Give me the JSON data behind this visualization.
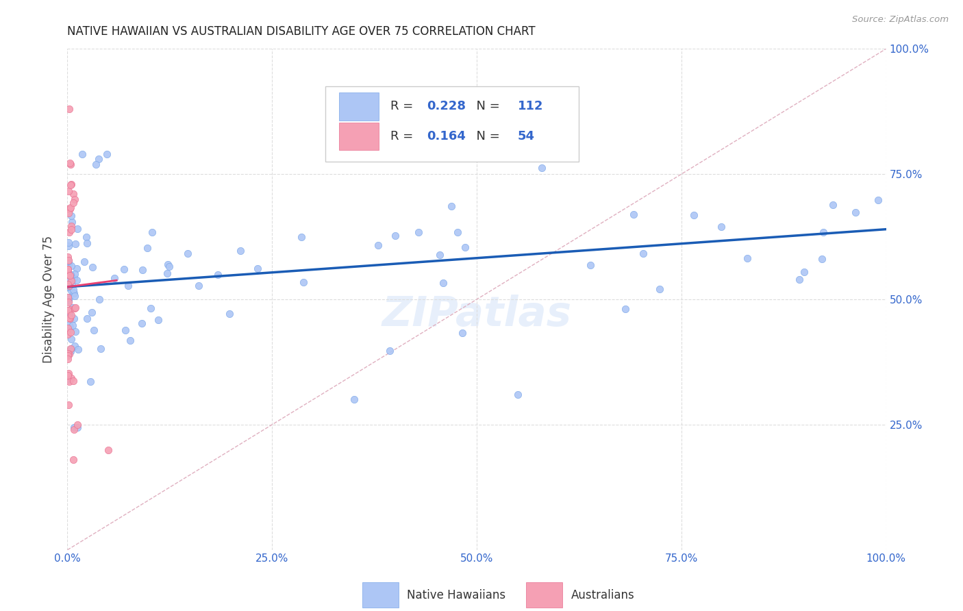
{
  "title": "NATIVE HAWAIIAN VS AUSTRALIAN DISABILITY AGE OVER 75 CORRELATION CHART",
  "source": "Source: ZipAtlas.com",
  "ylabel": "Disability Age Over 75",
  "xlim": [
    0,
    1.0
  ],
  "ylim": [
    0,
    1.0
  ],
  "xticks": [
    0.0,
    0.25,
    0.5,
    0.75,
    1.0
  ],
  "xticklabels": [
    "0.0%",
    "25.0%",
    "50.0%",
    "75.0%",
    "100.0%"
  ],
  "yticks": [
    0.25,
    0.5,
    0.75,
    1.0
  ],
  "yticklabels": [
    "25.0%",
    "50.0%",
    "75.0%",
    "100.0%"
  ],
  "title_color": "#222222",
  "title_fontsize": 12,
  "axis_tick_color": "#3366cc",
  "blue_line": [
    0.0,
    0.525,
    1.0,
    0.64
  ],
  "pink_line": [
    0.0,
    0.525,
    0.06,
    0.538
  ],
  "bg_color": "#ffffff",
  "grid_color": "#dddddd",
  "scatter_size": 55,
  "blue_scatter_color": "#adc6f5",
  "blue_scatter_edge": "#7ba7e8",
  "pink_scatter_color": "#f5a0b4",
  "pink_scatter_edge": "#e87090",
  "blue_line_color": "#1a5cb5",
  "pink_line_color": "#e84070",
  "diag_line_color": "#e0b0c0",
  "watermark_color": "#d0e0f8",
  "watermark_alpha": 0.5,
  "legend_R1": "0.228",
  "legend_N1": "112",
  "legend_R2": "0.164",
  "legend_N2": "54",
  "legend_val_color": "#3366cc",
  "legend_text_color": "#333333"
}
